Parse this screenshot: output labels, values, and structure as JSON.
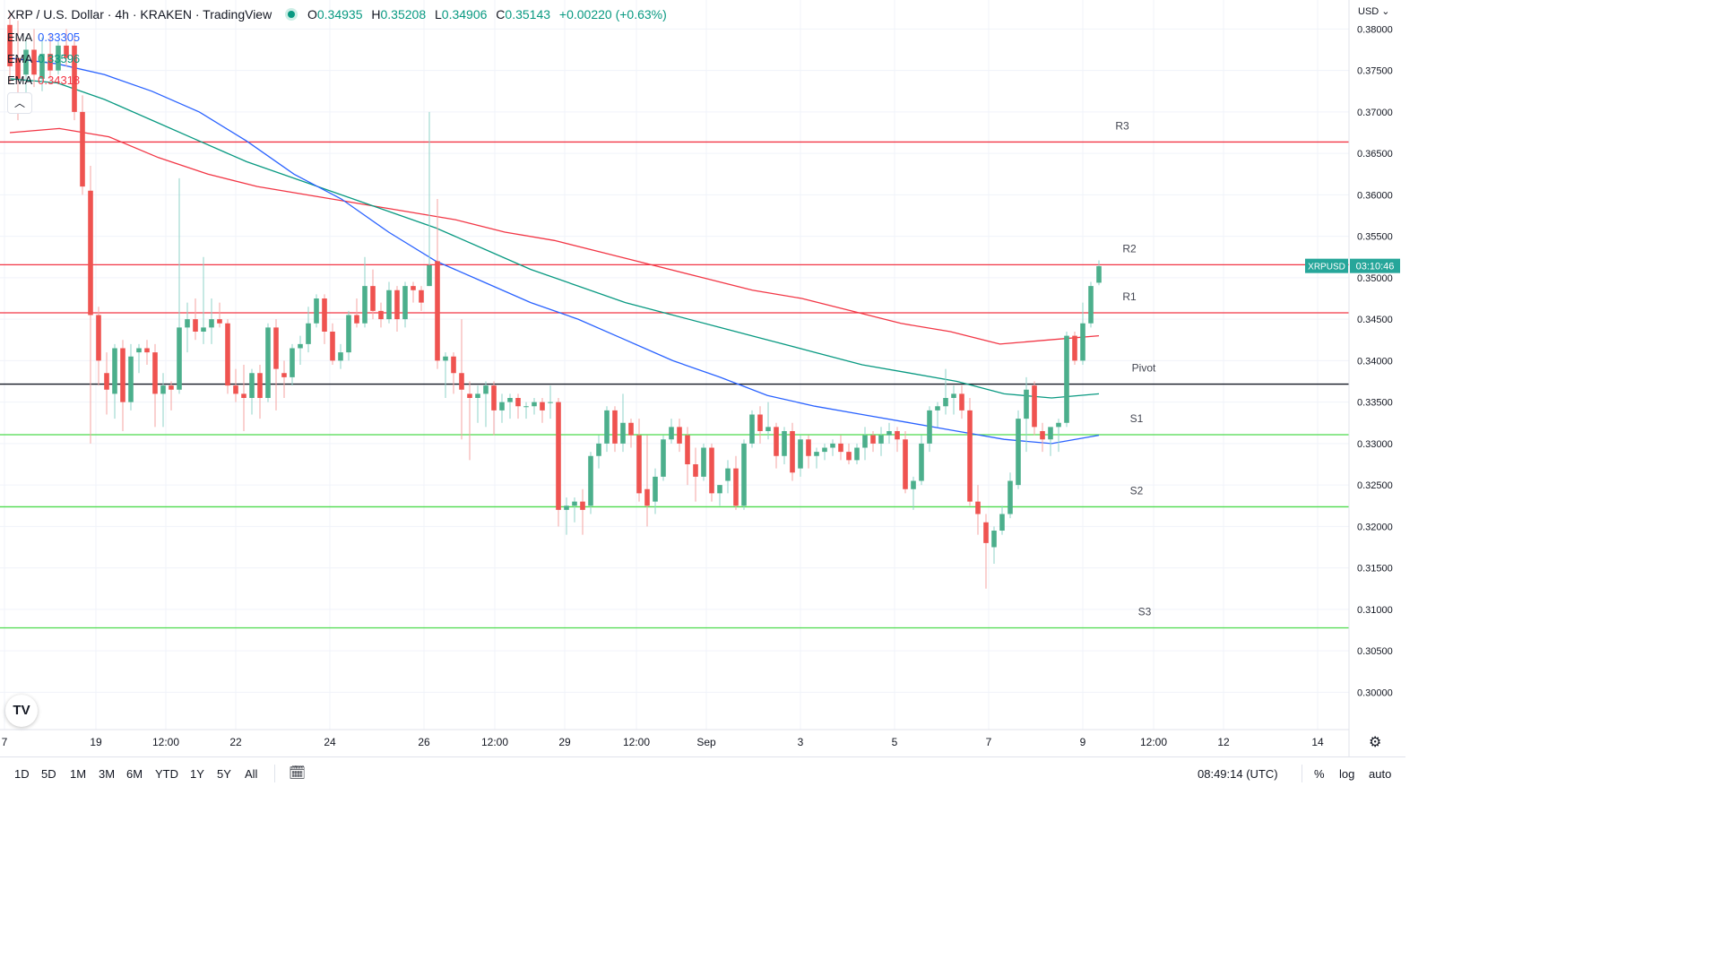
{
  "header": {
    "symbol": "XRP / U.S. Dollar",
    "interval": "4h",
    "exchange": "KRAKEN",
    "source": "TradingView",
    "o_label": "O",
    "o": "0.34935",
    "h_label": "H",
    "h": "0.35208",
    "l_label": "L",
    "l": "0.34906",
    "c_label": "C",
    "c": "0.35143",
    "change": "+0.00220 (+0.63%)"
  },
  "ema": [
    {
      "name": "EMA",
      "value": "0.33305",
      "color": "#2962ff"
    },
    {
      "name": "EMA",
      "value": "0.33596",
      "color": "#089981"
    },
    {
      "name": "EMA",
      "value": "0.34318",
      "color": "#f23645"
    }
  ],
  "currency": "USD",
  "icons": {
    "logo": "tradingview-logo",
    "gear": "gear-icon",
    "calendar": "calendar-range-icon",
    "collapse": "chevron-up-icon"
  },
  "toolbar": {
    "timeframes": [
      "1D",
      "5D",
      "1M",
      "3M",
      "6M",
      "YTD",
      "1Y",
      "5Y",
      "All"
    ],
    "clock": "08:49:14 (UTC)",
    "percent": "%",
    "log": "log",
    "auto": "auto"
  },
  "chart_data": {
    "type": "candlestick",
    "ylim": [
      0.2955,
      0.3835
    ],
    "y_ticks": [
      "0.38000",
      "0.37500",
      "0.37000",
      "0.36500",
      "0.36000",
      "0.35500",
      "0.35000",
      "0.34500",
      "0.34000",
      "0.33500",
      "0.33000",
      "0.32500",
      "0.32000",
      "0.31500",
      "0.31000",
      "0.30500",
      "0.30000"
    ],
    "x_ticks": [
      "7",
      "19",
      "12:00",
      "22",
      "24",
      "26",
      "12:00",
      "29",
      "12:00",
      "Sep",
      "3",
      "5",
      "7",
      "9",
      "12:00",
      "12",
      "14"
    ],
    "price_tag": {
      "symbol": "XRPUSD",
      "countdown": "03:10:46",
      "value": 0.35143
    },
    "levels": [
      {
        "name": "R3",
        "value": 0.36637,
        "color": "#f23645"
      },
      {
        "name": "R2",
        "value": 0.35157,
        "color": "#f23645"
      },
      {
        "name": "R1",
        "value": 0.34577,
        "color": "#f23645"
      },
      {
        "name": "Pivot",
        "value": 0.33717,
        "color": "#131722"
      },
      {
        "name": "S1",
        "value": 0.33107,
        "color": "#4cdb4c"
      },
      {
        "name": "S2",
        "value": 0.32237,
        "color": "#4cdb4c"
      },
      {
        "name": "S3",
        "value": 0.30777,
        "color": "#4cdb4c"
      }
    ],
    "candles": [
      [
        0.3805,
        0.382,
        0.3735,
        0.3755
      ],
      [
        0.3765,
        0.381,
        0.369,
        0.374
      ],
      [
        0.3745,
        0.379,
        0.372,
        0.3775
      ],
      [
        0.3775,
        0.38,
        0.373,
        0.3745
      ],
      [
        0.374,
        0.379,
        0.3725,
        0.377
      ],
      [
        0.377,
        0.3795,
        0.374,
        0.375
      ],
      [
        0.375,
        0.3785,
        0.3745,
        0.378
      ],
      [
        0.378,
        0.38,
        0.3755,
        0.3765
      ],
      [
        0.378,
        0.379,
        0.369,
        0.37
      ],
      [
        0.37,
        0.372,
        0.36,
        0.361
      ],
      [
        0.3605,
        0.3635,
        0.33,
        0.3455
      ],
      [
        0.3455,
        0.3465,
        0.337,
        0.34
      ],
      [
        0.3385,
        0.341,
        0.3335,
        0.3365
      ],
      [
        0.336,
        0.342,
        0.333,
        0.3415
      ],
      [
        0.3415,
        0.3425,
        0.3315,
        0.335
      ],
      [
        0.335,
        0.342,
        0.334,
        0.3405
      ],
      [
        0.341,
        0.342,
        0.3385,
        0.3415
      ],
      [
        0.3415,
        0.3425,
        0.3395,
        0.341
      ],
      [
        0.341,
        0.342,
        0.332,
        0.336
      ],
      [
        0.336,
        0.3385,
        0.332,
        0.337
      ],
      [
        0.337,
        0.3375,
        0.334,
        0.3365
      ],
      [
        0.3365,
        0.362,
        0.336,
        0.344
      ],
      [
        0.344,
        0.347,
        0.341,
        0.345
      ],
      [
        0.345,
        0.3475,
        0.3425,
        0.3435
      ],
      [
        0.3435,
        0.3525,
        0.342,
        0.344
      ],
      [
        0.344,
        0.3475,
        0.342,
        0.345
      ],
      [
        0.345,
        0.347,
        0.344,
        0.3445
      ],
      [
        0.3445,
        0.345,
        0.336,
        0.337
      ],
      [
        0.337,
        0.339,
        0.335,
        0.336
      ],
      [
        0.336,
        0.3395,
        0.3315,
        0.3355
      ],
      [
        0.3355,
        0.339,
        0.3335,
        0.3385
      ],
      [
        0.3385,
        0.3395,
        0.333,
        0.3355
      ],
      [
        0.3355,
        0.3445,
        0.335,
        0.344
      ],
      [
        0.344,
        0.345,
        0.334,
        0.339
      ],
      [
        0.3385,
        0.34,
        0.3355,
        0.338
      ],
      [
        0.338,
        0.342,
        0.337,
        0.3415
      ],
      [
        0.3415,
        0.343,
        0.3395,
        0.342
      ],
      [
        0.342,
        0.3465,
        0.341,
        0.3445
      ],
      [
        0.3445,
        0.348,
        0.344,
        0.3475
      ],
      [
        0.3475,
        0.348,
        0.342,
        0.3435
      ],
      [
        0.3435,
        0.3445,
        0.3395,
        0.34
      ],
      [
        0.34,
        0.342,
        0.339,
        0.341
      ],
      [
        0.341,
        0.346,
        0.34,
        0.3455
      ],
      [
        0.3455,
        0.3475,
        0.344,
        0.3445
      ],
      [
        0.3445,
        0.3525,
        0.344,
        0.349
      ],
      [
        0.349,
        0.351,
        0.345,
        0.346
      ],
      [
        0.346,
        0.347,
        0.344,
        0.345
      ],
      [
        0.345,
        0.3495,
        0.3445,
        0.3485
      ],
      [
        0.3485,
        0.349,
        0.3435,
        0.345
      ],
      [
        0.345,
        0.3495,
        0.344,
        0.349
      ],
      [
        0.349,
        0.3495,
        0.347,
        0.3485
      ],
      [
        0.3485,
        0.349,
        0.346,
        0.347
      ],
      [
        0.349,
        0.37,
        0.349,
        0.3515
      ],
      [
        0.352,
        0.3595,
        0.339,
        0.34
      ],
      [
        0.34,
        0.341,
        0.3355,
        0.3405
      ],
      [
        0.3405,
        0.341,
        0.336,
        0.3385
      ],
      [
        0.3385,
        0.345,
        0.3305,
        0.3365
      ],
      [
        0.336,
        0.3375,
        0.328,
        0.3355
      ],
      [
        0.3355,
        0.337,
        0.3325,
        0.336
      ],
      [
        0.336,
        0.3375,
        0.332,
        0.337
      ],
      [
        0.337,
        0.3375,
        0.331,
        0.334
      ],
      [
        0.334,
        0.336,
        0.3325,
        0.335
      ],
      [
        0.335,
        0.336,
        0.333,
        0.3355
      ],
      [
        0.3355,
        0.336,
        0.333,
        0.3345
      ],
      [
        0.3345,
        0.335,
        0.333,
        0.3345
      ],
      [
        0.3345,
        0.3355,
        0.3335,
        0.335
      ],
      [
        0.335,
        0.3355,
        0.3325,
        0.334
      ],
      [
        0.335,
        0.337,
        0.333,
        0.335
      ],
      [
        0.335,
        0.3355,
        0.32,
        0.322
      ],
      [
        0.322,
        0.3235,
        0.319,
        0.3225
      ],
      [
        0.3225,
        0.3235,
        0.3205,
        0.323
      ],
      [
        0.323,
        0.3245,
        0.319,
        0.322
      ],
      [
        0.3225,
        0.329,
        0.3215,
        0.3285
      ],
      [
        0.3285,
        0.331,
        0.327,
        0.33
      ],
      [
        0.33,
        0.3345,
        0.329,
        0.334
      ],
      [
        0.334,
        0.3345,
        0.329,
        0.33
      ],
      [
        0.33,
        0.336,
        0.329,
        0.3325
      ],
      [
        0.3325,
        0.333,
        0.3295,
        0.331
      ],
      [
        0.331,
        0.333,
        0.323,
        0.324
      ],
      [
        0.3245,
        0.331,
        0.32,
        0.3225
      ],
      [
        0.323,
        0.327,
        0.3215,
        0.326
      ],
      [
        0.326,
        0.331,
        0.3255,
        0.3305
      ],
      [
        0.3305,
        0.333,
        0.33,
        0.332
      ],
      [
        0.332,
        0.333,
        0.329,
        0.33
      ],
      [
        0.331,
        0.332,
        0.325,
        0.3275
      ],
      [
        0.3275,
        0.3295,
        0.323,
        0.326
      ],
      [
        0.326,
        0.33,
        0.3255,
        0.3295
      ],
      [
        0.3295,
        0.33,
        0.323,
        0.324
      ],
      [
        0.324,
        0.325,
        0.3225,
        0.325
      ],
      [
        0.3255,
        0.328,
        0.324,
        0.327
      ],
      [
        0.327,
        0.3285,
        0.322,
        0.3225
      ],
      [
        0.3225,
        0.3305,
        0.322,
        0.33
      ],
      [
        0.33,
        0.334,
        0.3295,
        0.3335
      ],
      [
        0.3335,
        0.3345,
        0.33,
        0.3315
      ],
      [
        0.3315,
        0.335,
        0.3305,
        0.332
      ],
      [
        0.332,
        0.3325,
        0.327,
        0.3285
      ],
      [
        0.3285,
        0.332,
        0.3275,
        0.3315
      ],
      [
        0.3315,
        0.3325,
        0.3255,
        0.3265
      ],
      [
        0.327,
        0.331,
        0.326,
        0.3305
      ],
      [
        0.3305,
        0.331,
        0.327,
        0.3285
      ],
      [
        0.3285,
        0.3295,
        0.327,
        0.329
      ],
      [
        0.329,
        0.33,
        0.328,
        0.3295
      ],
      [
        0.3295,
        0.3305,
        0.3285,
        0.33
      ],
      [
        0.33,
        0.331,
        0.328,
        0.329
      ],
      [
        0.329,
        0.33,
        0.3275,
        0.328
      ],
      [
        0.328,
        0.33,
        0.3275,
        0.3295
      ],
      [
        0.3295,
        0.332,
        0.328,
        0.331
      ],
      [
        0.331,
        0.3315,
        0.329,
        0.33
      ],
      [
        0.33,
        0.332,
        0.3285,
        0.331
      ],
      [
        0.331,
        0.3325,
        0.33,
        0.3315
      ],
      [
        0.3315,
        0.332,
        0.329,
        0.3305
      ],
      [
        0.3305,
        0.3315,
        0.324,
        0.3245
      ],
      [
        0.3245,
        0.326,
        0.322,
        0.3255
      ],
      [
        0.3255,
        0.331,
        0.325,
        0.33
      ],
      [
        0.33,
        0.3345,
        0.329,
        0.334
      ],
      [
        0.334,
        0.335,
        0.332,
        0.3345
      ],
      [
        0.3345,
        0.339,
        0.3335,
        0.3355
      ],
      [
        0.3355,
        0.337,
        0.3335,
        0.336
      ],
      [
        0.336,
        0.337,
        0.333,
        0.334
      ],
      [
        0.334,
        0.3355,
        0.3225,
        0.323
      ],
      [
        0.323,
        0.325,
        0.319,
        0.3215
      ],
      [
        0.3205,
        0.3215,
        0.3125,
        0.318
      ],
      [
        0.3175,
        0.32,
        0.3155,
        0.3195
      ],
      [
        0.3195,
        0.3225,
        0.319,
        0.3215
      ],
      [
        0.3215,
        0.3265,
        0.321,
        0.3255
      ],
      [
        0.325,
        0.334,
        0.3245,
        0.333
      ],
      [
        0.333,
        0.338,
        0.329,
        0.3365
      ],
      [
        0.337,
        0.3375,
        0.331,
        0.332
      ],
      [
        0.3315,
        0.3325,
        0.329,
        0.3305
      ],
      [
        0.3305,
        0.3315,
        0.3285,
        0.332
      ],
      [
        0.332,
        0.333,
        0.329,
        0.3325
      ],
      [
        0.3325,
        0.3435,
        0.332,
        0.343
      ],
      [
        0.343,
        0.3435,
        0.3395,
        0.34
      ],
      [
        0.34,
        0.347,
        0.3395,
        0.3445
      ],
      [
        0.3445,
        0.3495,
        0.344,
        0.349
      ],
      [
        0.3494,
        0.3521,
        0.3491,
        0.3514
      ]
    ],
    "ema_blue": [
      0.3765,
      0.3758,
      0.3745,
      0.3725,
      0.37,
      0.3665,
      0.3625,
      0.3595,
      0.3555,
      0.352,
      0.3495,
      0.347,
      0.345,
      0.3425,
      0.34,
      0.338,
      0.3358,
      0.3345,
      0.3335,
      0.3325,
      0.3315,
      0.3305,
      0.33,
      0.331
    ],
    "ema_green": [
      0.374,
      0.3735,
      0.3715,
      0.369,
      0.3665,
      0.364,
      0.362,
      0.36,
      0.358,
      0.356,
      0.3535,
      0.351,
      0.349,
      0.347,
      0.3455,
      0.344,
      0.3425,
      0.341,
      0.3395,
      0.3385,
      0.3375,
      0.336,
      0.3355,
      0.336
    ],
    "ema_red": [
      0.3675,
      0.368,
      0.367,
      0.3645,
      0.3625,
      0.361,
      0.36,
      0.359,
      0.358,
      0.357,
      0.3555,
      0.3545,
      0.353,
      0.3515,
      0.35,
      0.3485,
      0.3475,
      0.346,
      0.3445,
      0.3435,
      0.342,
      0.3425,
      0.343
    ]
  }
}
